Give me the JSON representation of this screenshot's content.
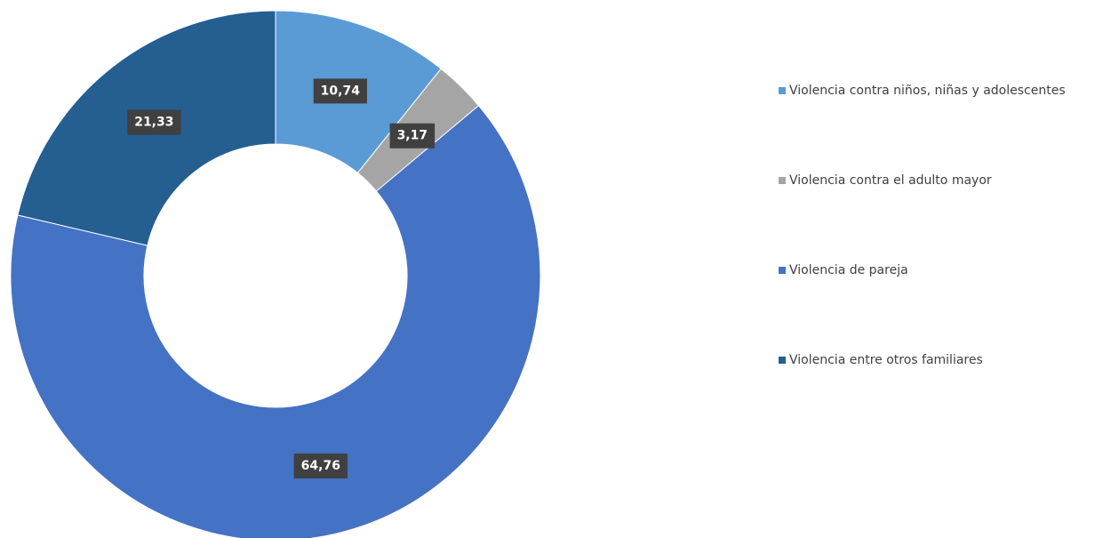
{
  "chart_data": {
    "type": "donut",
    "categories": [
      "Violencia contra niños, niñas y adolescentes",
      "Violencia contra el adulto mayor",
      "Violencia de pareja",
      "Violencia entre otros familiares"
    ],
    "values": [
      10.74,
      3.17,
      64.76,
      21.33
    ],
    "value_labels": [
      "10,74",
      "3,17",
      "64,76",
      "21,33"
    ],
    "colors": [
      "#5b9bd5",
      "#a5a5a5",
      "#4472c4",
      "#255e91"
    ],
    "legend": "right"
  }
}
